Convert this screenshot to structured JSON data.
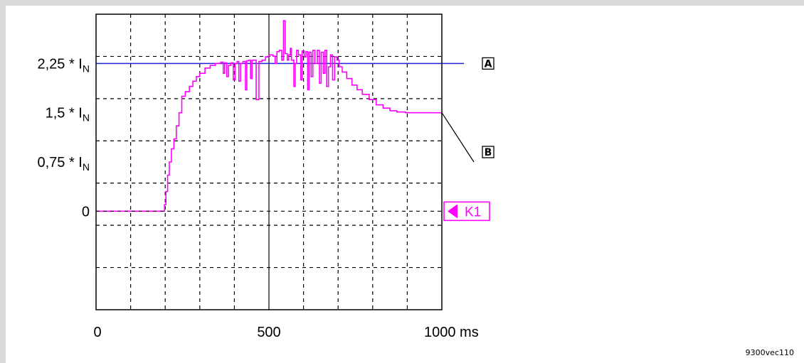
{
  "chart_data": {
    "type": "line",
    "xlabel": "",
    "ylabel": "",
    "x_unit": "ms",
    "xlim": [
      0,
      1000
    ],
    "ylim_divisions": [
      -1.5,
      3.0
    ],
    "x_ticks": [
      {
        "value": 0,
        "label": "0"
      },
      {
        "value": 500,
        "label": "500"
      },
      {
        "value": 1000,
        "label": "1000 ms"
      }
    ],
    "y_ticks": [
      {
        "value": 2.25,
        "main": "2,25 * I",
        "sub": "N"
      },
      {
        "value": 1.5,
        "main": "1,5 * I",
        "sub": "N"
      },
      {
        "value": 0.75,
        "main": "0,75 * I",
        "sub": "N"
      },
      {
        "value": 0,
        "main": "0",
        "sub": ""
      }
    ],
    "grid": true,
    "reference_line": {
      "y": 2.25,
      "color": "#1f1fd6",
      "marker": "A"
    },
    "series": [
      {
        "color": "#ff00ff",
        "marker": "B",
        "points": [
          [
            0,
            0
          ],
          [
            195,
            0
          ],
          [
            198,
            0.1
          ],
          [
            202,
            0.3
          ],
          [
            207,
            0.55
          ],
          [
            212,
            0.75
          ],
          [
            218,
            0.95
          ],
          [
            225,
            1.1
          ],
          [
            232,
            1.3
          ],
          [
            240,
            1.5
          ],
          [
            248,
            1.75
          ],
          [
            258,
            1.82
          ],
          [
            270,
            1.9
          ],
          [
            280,
            1.98
          ],
          [
            290,
            2.05
          ],
          [
            300,
            2.1
          ],
          [
            315,
            2.18
          ],
          [
            330,
            2.22
          ],
          [
            345,
            2.25
          ],
          [
            360,
            2.27
          ],
          [
            365,
            2.27
          ],
          [
            368,
            2.1
          ],
          [
            372,
            2.26
          ],
          [
            378,
            2.05
          ],
          [
            383,
            2.22
          ],
          [
            390,
            2.26
          ],
          [
            397,
            2.0
          ],
          [
            402,
            2.25
          ],
          [
            408,
            2.28
          ],
          [
            413,
            1.98
          ],
          [
            418,
            2.25
          ],
          [
            425,
            2.28
          ],
          [
            432,
            1.85
          ],
          [
            436,
            2.29
          ],
          [
            442,
            2.3
          ],
          [
            447,
            2.02
          ],
          [
            451,
            2.3
          ],
          [
            458,
            2.3
          ],
          [
            463,
            1.7
          ],
          [
            468,
            1.7
          ],
          [
            471,
            2.28
          ],
          [
            480,
            2.3
          ],
          [
            490,
            2.35
          ],
          [
            500,
            2.38
          ],
          [
            512,
            2.36
          ],
          [
            518,
            2.25
          ],
          [
            523,
            2.43
          ],
          [
            530,
            2.45
          ],
          [
            537,
            2.3
          ],
          [
            542,
            2.9
          ],
          [
            547,
            2.4
          ],
          [
            553,
            2.3
          ],
          [
            557,
            2.38
          ],
          [
            562,
            2.48
          ],
          [
            565,
            2.3
          ],
          [
            572,
            1.9
          ],
          [
            576,
            2.25
          ],
          [
            580,
            2.45
          ],
          [
            585,
            2.38
          ],
          [
            592,
            2.0
          ],
          [
            596,
            2.44
          ],
          [
            602,
            2.35
          ],
          [
            607,
            2.43
          ],
          [
            612,
            1.85
          ],
          [
            616,
            2.42
          ],
          [
            622,
            2.05
          ],
          [
            627,
            2.45
          ],
          [
            633,
            2.25
          ],
          [
            640,
            2.45
          ],
          [
            646,
            1.95
          ],
          [
            651,
            2.42
          ],
          [
            657,
            2.1
          ],
          [
            662,
            2.45
          ],
          [
            667,
            1.9
          ],
          [
            672,
            2.2
          ],
          [
            678,
            2.38
          ],
          [
            684,
            2.0
          ],
          [
            690,
            2.35
          ],
          [
            697,
            2.3
          ],
          [
            703,
            2.2
          ],
          [
            712,
            2.12
          ],
          [
            725,
            2.02
          ],
          [
            740,
            1.92
          ],
          [
            755,
            1.85
          ],
          [
            770,
            1.78
          ],
          [
            790,
            1.7
          ],
          [
            810,
            1.62
          ],
          [
            830,
            1.57
          ],
          [
            850,
            1.53
          ],
          [
            870,
            1.51
          ],
          [
            895,
            1.5
          ],
          [
            1000,
            1.5
          ]
        ]
      }
    ],
    "channel_label": {
      "text": "K1",
      "y": 0
    },
    "markers": [
      "A",
      "B"
    ]
  },
  "figure_id": "9300vec110"
}
